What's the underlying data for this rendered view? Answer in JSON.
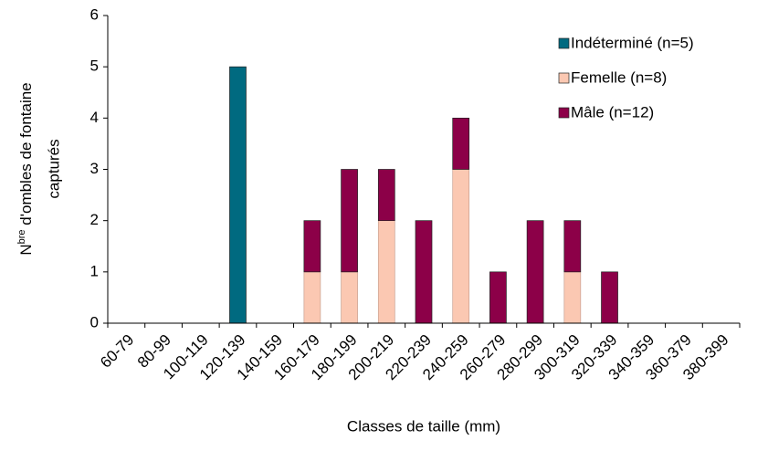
{
  "chart_data": {
    "type": "stacked_bar",
    "xlabel": "Classes de taille (mm)",
    "ylabel": {
      "base": "N",
      "sup": "bre",
      "rest": " d'ombles de fontaine",
      "line2": "capturés"
    },
    "categories": [
      "60-79",
      "80-99",
      "100-119",
      "120-139",
      "140-159",
      "160-179",
      "180-199",
      "200-219",
      "220-239",
      "240-259",
      "260-279",
      "280-299",
      "300-319",
      "320-339",
      "340-359",
      "360-379",
      "380-399"
    ],
    "series": [
      {
        "name": "Indéterminé (n=5)",
        "color": "#006a80",
        "values": [
          0,
          0,
          0,
          5,
          0,
          0,
          0,
          0,
          0,
          0,
          0,
          0,
          0,
          0,
          0,
          0,
          0
        ]
      },
      {
        "name": "Femelle (n=8)",
        "color": "#fbc8b2",
        "values": [
          0,
          0,
          0,
          0,
          0,
          1,
          1,
          2,
          0,
          3,
          0,
          0,
          1,
          0,
          0,
          0,
          0
        ]
      },
      {
        "name": "Mâle (n=12)",
        "color": "#8c0048",
        "values": [
          0,
          0,
          0,
          0,
          0,
          1,
          2,
          1,
          2,
          1,
          1,
          2,
          1,
          1,
          0,
          0,
          0
        ]
      }
    ],
    "ylim": [
      0,
      6
    ],
    "yticks": [
      0,
      1,
      2,
      3,
      4,
      5,
      6
    ],
    "legend": "upper right"
  }
}
